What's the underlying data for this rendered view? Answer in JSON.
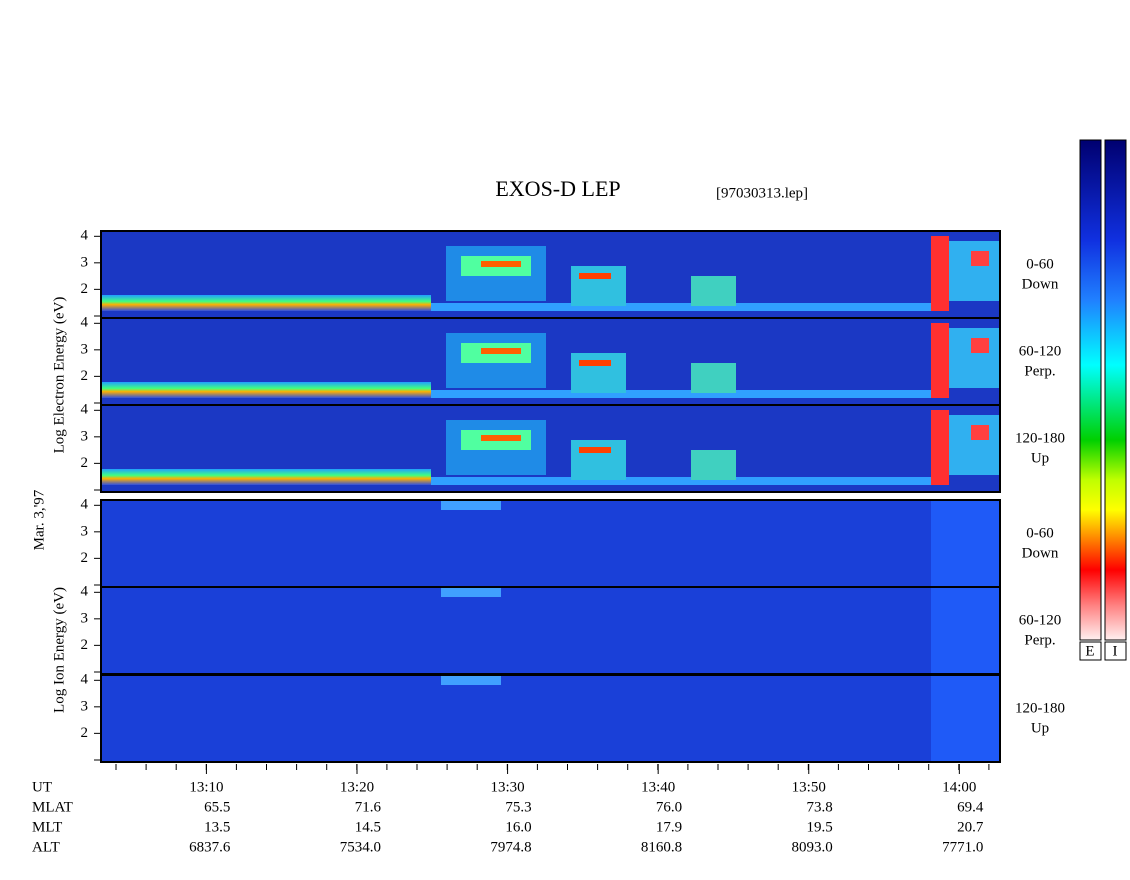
{
  "header": {
    "title": "EXOS-D LEP",
    "file": "[97030313.lep]"
  },
  "electron": {
    "axis_label": "Log Electron Energy (eV)",
    "panels": [
      {
        "range": "0-60",
        "direction": "Down"
      },
      {
        "range": "60-120",
        "direction": "Perp."
      },
      {
        "range": "120-180",
        "direction": "Up"
      }
    ]
  },
  "date": "Mar. 3,'97",
  "ion": {
    "axis_label": "Log Ion Energy (eV)",
    "panels": [
      {
        "range": "0-60",
        "direction": "Down"
      },
      {
        "range": "60-120",
        "direction": "Perp."
      },
      {
        "range": "120-180",
        "direction": "Up"
      }
    ]
  },
  "ylim": [
    0.92,
    4.2
  ],
  "yticks": [
    2,
    3,
    4
  ],
  "xlim": [
    783,
    842.7
  ],
  "xticks": [
    {
      "value": 790,
      "label": "13:10"
    },
    {
      "value": 800,
      "label": "13:20"
    },
    {
      "value": 810,
      "label": "13:30"
    },
    {
      "value": 820,
      "label": "13:40"
    },
    {
      "value": 830,
      "label": "13:50"
    },
    {
      "value": 840,
      "label": "14:00"
    }
  ],
  "rows": [
    {
      "label": "UT"
    },
    {
      "label": "MLAT",
      "values": [
        "65.5",
        "71.6",
        "75.3",
        "76.0",
        "73.8",
        "69.4"
      ]
    },
    {
      "label": "MLT",
      "values": [
        "13.5",
        "14.5",
        "16.0",
        "17.9",
        "19.5",
        "20.7"
      ]
    },
    {
      "label": "ALT",
      "values": [
        "6837.6",
        "7534.0",
        "7974.8",
        "8160.8",
        "8093.0",
        "7771.0"
      ]
    }
  ],
  "colorbars": [
    "E",
    "I"
  ]
}
